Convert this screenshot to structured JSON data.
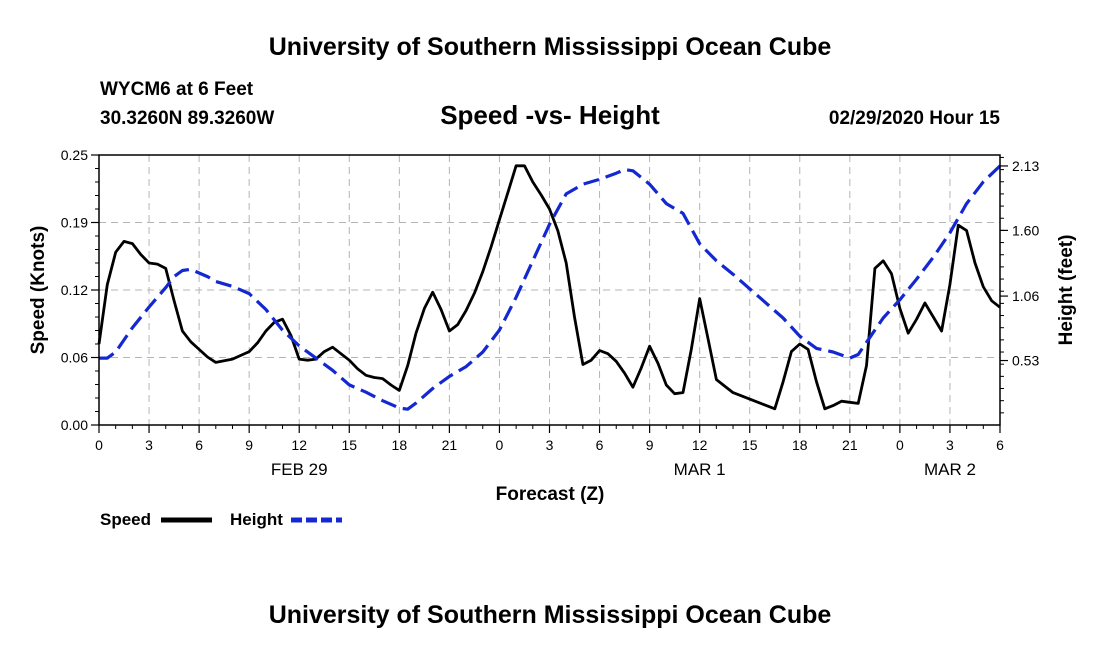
{
  "header": {
    "title_top": "University of Southern Mississippi Ocean Cube",
    "title_bottom": "University of Southern Mississippi Ocean Cube",
    "station": "WYCM6 at 6 Feet",
    "location": "30.3260N 89.3260W",
    "timestamp": "02/29/2020 Hour 15"
  },
  "legend": {
    "speed_label": "Speed",
    "height_label": "Height"
  },
  "colors": {
    "speed": "#000000",
    "height": "#1428d2",
    "grid": "#b4b4b4"
  },
  "chart_data": {
    "type": "line",
    "title": "Speed -vs- Height",
    "xlabel": "Forecast (Z)",
    "ylabel": "Speed (Knots)",
    "y2label": "Height (feet)",
    "x_range": [
      0,
      54
    ],
    "ylim": [
      0,
      0.25
    ],
    "y2lim": [
      0,
      2.22
    ],
    "x_ticks": [
      {
        "x": 0,
        "label": "0"
      },
      {
        "x": 3,
        "label": "3"
      },
      {
        "x": 6,
        "label": "6"
      },
      {
        "x": 9,
        "label": "9"
      },
      {
        "x": 12,
        "label": "12"
      },
      {
        "x": 15,
        "label": "15"
      },
      {
        "x": 18,
        "label": "18"
      },
      {
        "x": 21,
        "label": "21"
      },
      {
        "x": 24,
        "label": "0"
      },
      {
        "x": 27,
        "label": "3"
      },
      {
        "x": 30,
        "label": "6"
      },
      {
        "x": 33,
        "label": "9"
      },
      {
        "x": 36,
        "label": "12"
      },
      {
        "x": 39,
        "label": "15"
      },
      {
        "x": 42,
        "label": "18"
      },
      {
        "x": 45,
        "label": "21"
      },
      {
        "x": 48,
        "label": "0"
      },
      {
        "x": 51,
        "label": "3"
      },
      {
        "x": 54,
        "label": "6"
      }
    ],
    "date_labels": [
      {
        "x": 12,
        "label": "FEB 29"
      },
      {
        "x": 36,
        "label": "MAR 1"
      },
      {
        "x": 51,
        "label": "MAR 2"
      }
    ],
    "y_ticks": [
      {
        "value": 0.0,
        "label": "0.00"
      },
      {
        "value": 0.0625,
        "label": "0.06"
      },
      {
        "value": 0.125,
        "label": "0.12"
      },
      {
        "value": 0.1875,
        "label": "0.19"
      },
      {
        "value": 0.25,
        "label": "0.25"
      }
    ],
    "y2_ticks": [
      {
        "value": 0.53,
        "label": "0.53"
      },
      {
        "value": 1.06,
        "label": "1.06"
      },
      {
        "value": 1.6,
        "label": "1.60"
      },
      {
        "value": 2.13,
        "label": "2.13"
      }
    ],
    "series": [
      {
        "name": "Speed",
        "axis": "left",
        "style": "solid",
        "points": [
          [
            0,
            0.075
          ],
          [
            0.5,
            0.13
          ],
          [
            1,
            0.16
          ],
          [
            1.5,
            0.17
          ],
          [
            2,
            0.168
          ],
          [
            2.5,
            0.158
          ],
          [
            3,
            0.15
          ],
          [
            3.5,
            0.149
          ],
          [
            4,
            0.145
          ],
          [
            4.5,
            0.115
          ],
          [
            5,
            0.087
          ],
          [
            5.5,
            0.077
          ],
          [
            6,
            0.07
          ],
          [
            6.5,
            0.063
          ],
          [
            7,
            0.058
          ],
          [
            8,
            0.061
          ],
          [
            9,
            0.068
          ],
          [
            9.5,
            0.076
          ],
          [
            10,
            0.087
          ],
          [
            10.5,
            0.095
          ],
          [
            11,
            0.098
          ],
          [
            11.5,
            0.083
          ],
          [
            12,
            0.061
          ],
          [
            12.5,
            0.06
          ],
          [
            13,
            0.061
          ],
          [
            13.5,
            0.068
          ],
          [
            14,
            0.072
          ],
          [
            14.5,
            0.066
          ],
          [
            15,
            0.06
          ],
          [
            15.5,
            0.052
          ],
          [
            16,
            0.046
          ],
          [
            16.5,
            0.044
          ],
          [
            17,
            0.043
          ],
          [
            17.5,
            0.037
          ],
          [
            18,
            0.032
          ],
          [
            18.5,
            0.055
          ],
          [
            19,
            0.085
          ],
          [
            19.5,
            0.108
          ],
          [
            20,
            0.123
          ],
          [
            20.5,
            0.107
          ],
          [
            21,
            0.087
          ],
          [
            21.5,
            0.093
          ],
          [
            22,
            0.106
          ],
          [
            22.5,
            0.122
          ],
          [
            23,
            0.142
          ],
          [
            23.5,
            0.165
          ],
          [
            24,
            0.19
          ],
          [
            24.5,
            0.215
          ],
          [
            25,
            0.24
          ],
          [
            25.5,
            0.24
          ],
          [
            26,
            0.225
          ],
          [
            26.5,
            0.213
          ],
          [
            27,
            0.2
          ],
          [
            27.5,
            0.18
          ],
          [
            28,
            0.15
          ],
          [
            28.5,
            0.1
          ],
          [
            29,
            0.056
          ],
          [
            29.5,
            0.06
          ],
          [
            30,
            0.069
          ],
          [
            30.5,
            0.066
          ],
          [
            31,
            0.059
          ],
          [
            31.5,
            0.048
          ],
          [
            32,
            0.035
          ],
          [
            32.5,
            0.053
          ],
          [
            33,
            0.073
          ],
          [
            33.5,
            0.057
          ],
          [
            34,
            0.037
          ],
          [
            34.5,
            0.029
          ],
          [
            35,
            0.03
          ],
          [
            35.5,
            0.07
          ],
          [
            36,
            0.117
          ],
          [
            36.5,
            0.08
          ],
          [
            37,
            0.042
          ],
          [
            37.5,
            0.036
          ],
          [
            38,
            0.03
          ],
          [
            39,
            0.024
          ],
          [
            40,
            0.018
          ],
          [
            40.5,
            0.015
          ],
          [
            41,
            0.04
          ],
          [
            41.5,
            0.068
          ],
          [
            42,
            0.075
          ],
          [
            42.5,
            0.07
          ],
          [
            43,
            0.04
          ],
          [
            43.5,
            0.015
          ],
          [
            44,
            0.018
          ],
          [
            44.5,
            0.022
          ],
          [
            45,
            0.021
          ],
          [
            45.5,
            0.02
          ],
          [
            46,
            0.055
          ],
          [
            46.5,
            0.145
          ],
          [
            47,
            0.152
          ],
          [
            47.5,
            0.14
          ],
          [
            48,
            0.108
          ],
          [
            48.5,
            0.085
          ],
          [
            49,
            0.098
          ],
          [
            49.5,
            0.113
          ],
          [
            50,
            0.1
          ],
          [
            50.5,
            0.087
          ],
          [
            51,
            0.13
          ],
          [
            51.5,
            0.185
          ],
          [
            52,
            0.18
          ],
          [
            52.5,
            0.15
          ],
          [
            53,
            0.128
          ],
          [
            53.5,
            0.115
          ],
          [
            54,
            0.109
          ]
        ]
      },
      {
        "name": "Height",
        "axis": "right",
        "style": "dashed",
        "points": [
          [
            0,
            0.55
          ],
          [
            0.5,
            0.55
          ],
          [
            1,
            0.6
          ],
          [
            2,
            0.8
          ],
          [
            3,
            0.97
          ],
          [
            4,
            1.13
          ],
          [
            4.5,
            1.22
          ],
          [
            5,
            1.27
          ],
          [
            5.5,
            1.28
          ],
          [
            6,
            1.25
          ],
          [
            6.5,
            1.22
          ],
          [
            7,
            1.18
          ],
          [
            8,
            1.14
          ],
          [
            9,
            1.08
          ],
          [
            10,
            0.95
          ],
          [
            11,
            0.78
          ],
          [
            12,
            0.65
          ],
          [
            13,
            0.55
          ],
          [
            14,
            0.45
          ],
          [
            15,
            0.33
          ],
          [
            16,
            0.27
          ],
          [
            17,
            0.2
          ],
          [
            18,
            0.14
          ],
          [
            18.5,
            0.13
          ],
          [
            19,
            0.18
          ],
          [
            20,
            0.3
          ],
          [
            21,
            0.4
          ],
          [
            22,
            0.48
          ],
          [
            23,
            0.6
          ],
          [
            24,
            0.78
          ],
          [
            25,
            1.05
          ],
          [
            26,
            1.35
          ],
          [
            27,
            1.65
          ],
          [
            28,
            1.9
          ],
          [
            29,
            1.98
          ],
          [
            30,
            2.02
          ],
          [
            31,
            2.07
          ],
          [
            31.5,
            2.1
          ],
          [
            32,
            2.09
          ],
          [
            33,
            1.98
          ],
          [
            34,
            1.82
          ],
          [
            35,
            1.74
          ],
          [
            36,
            1.49
          ],
          [
            37,
            1.35
          ],
          [
            38,
            1.24
          ],
          [
            39,
            1.12
          ],
          [
            40,
            1.0
          ],
          [
            41,
            0.88
          ],
          [
            42,
            0.73
          ],
          [
            43,
            0.63
          ],
          [
            44,
            0.6
          ],
          [
            45,
            0.55
          ],
          [
            45.5,
            0.58
          ],
          [
            46,
            0.68
          ],
          [
            47,
            0.88
          ],
          [
            48,
            1.03
          ],
          [
            49,
            1.2
          ],
          [
            50,
            1.38
          ],
          [
            51,
            1.58
          ],
          [
            52,
            1.82
          ],
          [
            53,
            2.0
          ],
          [
            54,
            2.13
          ]
        ]
      }
    ]
  }
}
